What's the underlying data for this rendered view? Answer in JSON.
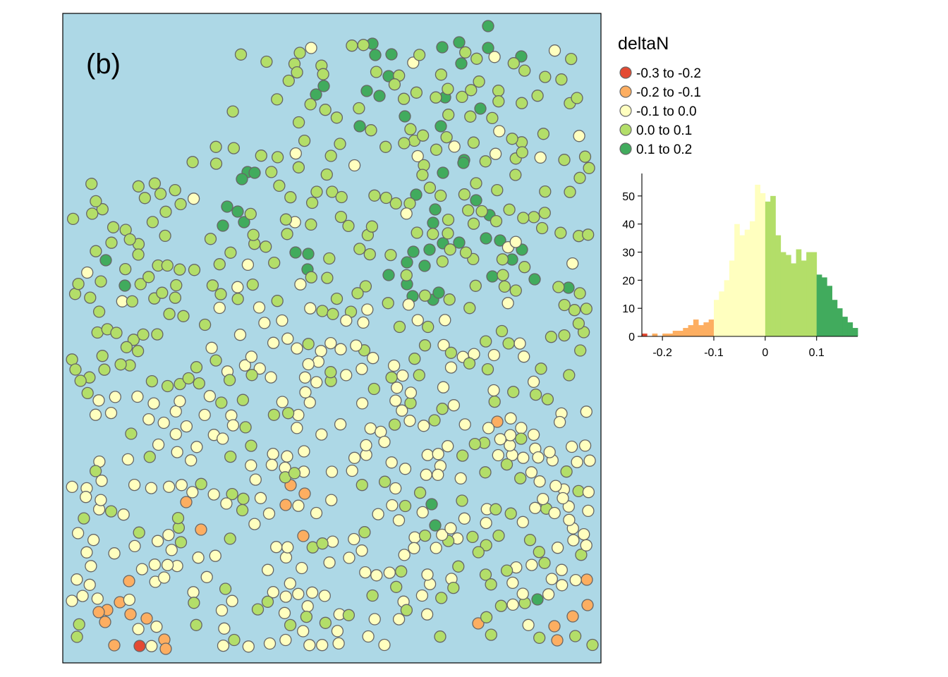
{
  "panel_label": "(b)",
  "legend": {
    "title": "deltaN",
    "classes": [
      {
        "label": "-0.3 to -0.2",
        "color": "#E34A33"
      },
      {
        "label": "-0.2 to -0.1",
        "color": "#FDAE61"
      },
      {
        "label": "-0.1 to 0.0",
        "color": "#FFFFBF"
      },
      {
        "label": "0.0 to 0.1",
        "color": "#B3DE69"
      },
      {
        "label": "0.1 to 0.2",
        "color": "#41AB5D"
      }
    ]
  },
  "colors": {
    "map_background": "#ADD8E6",
    "point_outline": "#666666",
    "class_colors": [
      "#E34A33",
      "#FDAE61",
      "#FFFFBF",
      "#B3DE69",
      "#41AB5D"
    ]
  },
  "chart_data": {
    "type": "bar",
    "description_free": true,
    "xlim": [
      -0.24,
      0.18
    ],
    "ylim": [
      0,
      58
    ],
    "x_ticks": [
      "-0.2",
      "-0.1",
      "0",
      "0.1"
    ],
    "x_tick_values": [
      -0.2,
      -0.1,
      0,
      0.1
    ],
    "y_ticks": [
      "0",
      "10",
      "20",
      "30",
      "40",
      "50"
    ],
    "y_tick_values": [
      0,
      10,
      20,
      30,
      40,
      50
    ],
    "bin_width": 0.01,
    "bins": [
      {
        "x": -0.24,
        "count": 1,
        "class": 0
      },
      {
        "x": -0.22,
        "count": 1,
        "class": 1
      },
      {
        "x": -0.21,
        "count": 0,
        "class": 1
      },
      {
        "x": -0.2,
        "count": 1,
        "class": 1
      },
      {
        "x": -0.19,
        "count": 1,
        "class": 1
      },
      {
        "x": -0.18,
        "count": 2,
        "class": 1
      },
      {
        "x": -0.17,
        "count": 2,
        "class": 1
      },
      {
        "x": -0.16,
        "count": 3,
        "class": 1
      },
      {
        "x": -0.15,
        "count": 4,
        "class": 1
      },
      {
        "x": -0.14,
        "count": 6,
        "class": 1
      },
      {
        "x": -0.13,
        "count": 4,
        "class": 1
      },
      {
        "x": -0.12,
        "count": 5,
        "class": 1
      },
      {
        "x": -0.11,
        "count": 6,
        "class": 1
      },
      {
        "x": -0.1,
        "count": 13,
        "class": 2
      },
      {
        "x": -0.09,
        "count": 16,
        "class": 2
      },
      {
        "x": -0.08,
        "count": 20,
        "class": 2
      },
      {
        "x": -0.07,
        "count": 27,
        "class": 2
      },
      {
        "x": -0.06,
        "count": 40,
        "class": 2
      },
      {
        "x": -0.05,
        "count": 36,
        "class": 2
      },
      {
        "x": -0.04,
        "count": 38,
        "class": 2
      },
      {
        "x": -0.03,
        "count": 41,
        "class": 2
      },
      {
        "x": -0.02,
        "count": 54,
        "class": 2
      },
      {
        "x": -0.01,
        "count": 51,
        "class": 2
      },
      {
        "x": 0.0,
        "count": 48,
        "class": 3
      },
      {
        "x": 0.01,
        "count": 50,
        "class": 3
      },
      {
        "x": 0.02,
        "count": 36,
        "class": 3
      },
      {
        "x": 0.03,
        "count": 30,
        "class": 3
      },
      {
        "x": 0.04,
        "count": 29,
        "class": 3
      },
      {
        "x": 0.05,
        "count": 26,
        "class": 3
      },
      {
        "x": 0.06,
        "count": 31,
        "class": 3
      },
      {
        "x": 0.07,
        "count": 27,
        "class": 3
      },
      {
        "x": 0.08,
        "count": 30,
        "class": 3
      },
      {
        "x": 0.09,
        "count": 30,
        "class": 3
      },
      {
        "x": 0.1,
        "count": 22,
        "class": 4
      },
      {
        "x": 0.11,
        "count": 21,
        "class": 4
      },
      {
        "x": 0.12,
        "count": 18,
        "class": 4
      },
      {
        "x": 0.13,
        "count": 13,
        "class": 4
      },
      {
        "x": 0.14,
        "count": 10,
        "class": 4
      },
      {
        "x": 0.15,
        "count": 7,
        "class": 4
      },
      {
        "x": 0.16,
        "count": 5,
        "class": 4
      },
      {
        "x": 0.17,
        "count": 3,
        "class": 4
      }
    ]
  }
}
